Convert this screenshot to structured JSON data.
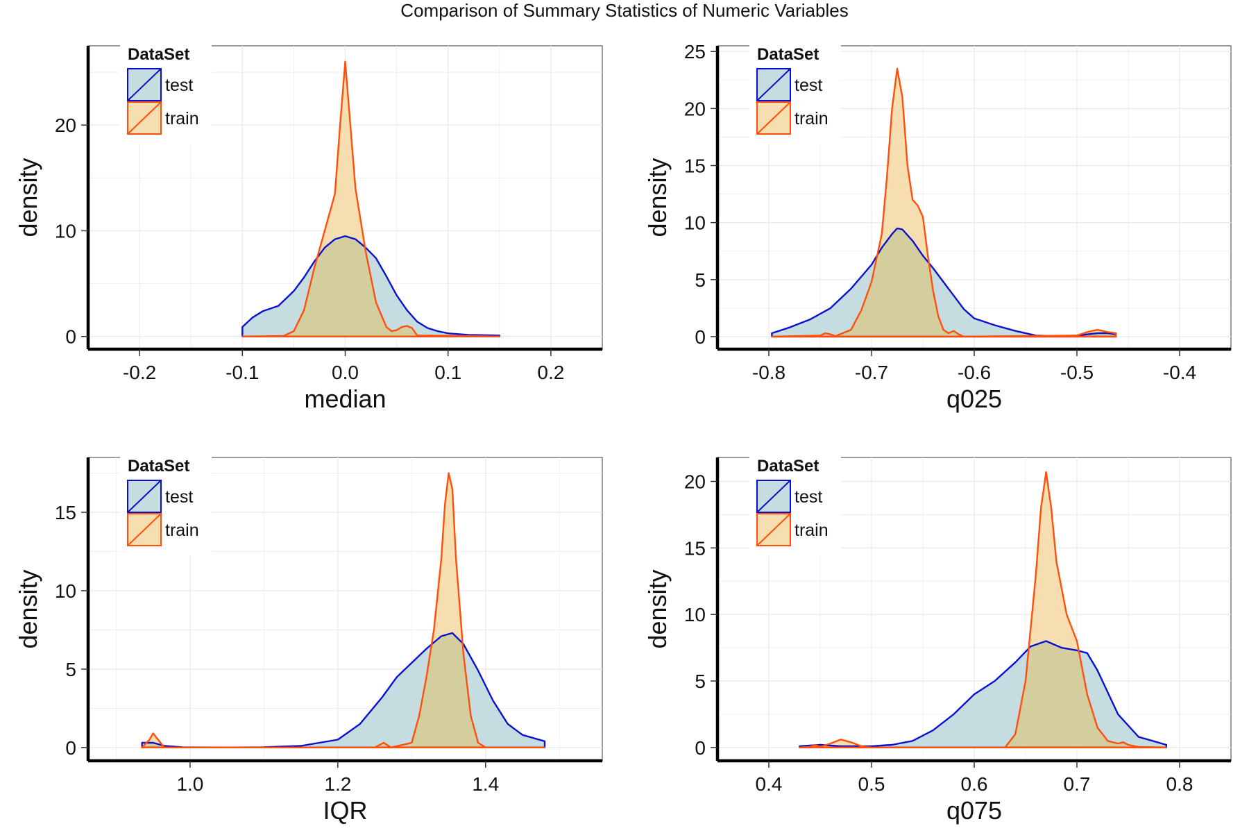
{
  "title": "Comparison of Summary Statistics of Numeric Variables",
  "legend": {
    "title": "DataSet",
    "items": [
      {
        "label": "test",
        "stroke": "#0a10d0",
        "fill": "#c5dde0"
      },
      {
        "label": "train",
        "stroke": "#ff4f0a",
        "fill": "#f6deb0"
      }
    ]
  },
  "colors": {
    "overlap_fill": "#d4cd9e",
    "grid": "#ebebeb",
    "axis": "#000000"
  },
  "chart_data": [
    {
      "type": "area",
      "xlabel": "median",
      "ylabel": "density",
      "xlim": [
        -0.25,
        0.25
      ],
      "ylim": [
        -1.2,
        27.5
      ],
      "xticks": [
        -0.2,
        -0.1,
        0.0,
        0.1,
        0.2
      ],
      "xtick_labels": [
        "-0.2",
        "-0.1",
        "0.0",
        "0.1",
        "0.2"
      ],
      "yticks": [
        0,
        10,
        20
      ],
      "ytick_labels": [
        "0",
        "10",
        "20"
      ],
      "legend_position": "top-left",
      "grid": true,
      "series": [
        {
          "name": "test",
          "x": [
            -0.1,
            -0.1,
            -0.09,
            -0.08,
            -0.065,
            -0.05,
            -0.04,
            -0.03,
            -0.02,
            -0.01,
            0.0,
            0.01,
            0.02,
            0.03,
            0.04,
            0.05,
            0.06,
            0.07,
            0.08,
            0.09,
            0.1,
            0.12,
            0.15,
            0.15
          ],
          "y": [
            0,
            0.9,
            1.8,
            2.4,
            2.9,
            4.3,
            5.6,
            7.1,
            8.4,
            9.2,
            9.5,
            9.2,
            8.4,
            7.4,
            5.7,
            3.9,
            2.5,
            1.4,
            0.8,
            0.5,
            0.3,
            0.15,
            0.1,
            0
          ]
        },
        {
          "name": "train",
          "x": [
            -0.1,
            -0.06,
            -0.05,
            -0.04,
            -0.03,
            -0.02,
            -0.01,
            -0.005,
            0.0,
            0.005,
            0.01,
            0.02,
            0.03,
            0.04,
            0.045,
            0.05,
            0.055,
            0.06,
            0.065,
            0.07,
            0.15
          ],
          "y": [
            0,
            0.05,
            0.5,
            2.5,
            6.5,
            10,
            13.5,
            20,
            26,
            20,
            14,
            8,
            3.2,
            0.9,
            0.5,
            0.6,
            0.9,
            1.0,
            0.8,
            0.1,
            0
          ]
        }
      ]
    },
    {
      "type": "area",
      "xlabel": "q025",
      "ylabel": "density",
      "xlim": [
        -0.85,
        -0.35
      ],
      "ylim": [
        -1.1,
        25.5
      ],
      "xticks": [
        -0.8,
        -0.7,
        -0.6,
        -0.5,
        -0.4
      ],
      "xtick_labels": [
        "-0.8",
        "-0.7",
        "-0.6",
        "-0.5",
        "-0.4"
      ],
      "yticks": [
        0,
        5,
        10,
        15,
        20,
        25
      ],
      "ytick_labels": [
        "0",
        "5",
        "10",
        "15",
        "20",
        "25"
      ],
      "legend_position": "top-left",
      "grid": true,
      "series": [
        {
          "name": "test",
          "x": [
            -0.797,
            -0.797,
            -0.78,
            -0.76,
            -0.74,
            -0.72,
            -0.7,
            -0.69,
            -0.68,
            -0.675,
            -0.67,
            -0.66,
            -0.65,
            -0.64,
            -0.63,
            -0.62,
            -0.61,
            -0.6,
            -0.58,
            -0.56,
            -0.54,
            -0.52,
            -0.5,
            -0.48,
            -0.47,
            -0.462,
            -0.462
          ],
          "y": [
            0,
            0.3,
            0.8,
            1.5,
            2.5,
            4.2,
            6.3,
            7.8,
            9.0,
            9.5,
            9.4,
            8.4,
            7.1,
            6.0,
            4.8,
            3.6,
            2.4,
            1.6,
            1.0,
            0.5,
            0.1,
            0.05,
            0.1,
            0.3,
            0.3,
            0.2,
            0
          ]
        },
        {
          "name": "train",
          "x": [
            -0.797,
            -0.75,
            -0.745,
            -0.74,
            -0.735,
            -0.72,
            -0.71,
            -0.7,
            -0.69,
            -0.685,
            -0.68,
            -0.675,
            -0.67,
            -0.665,
            -0.66,
            -0.655,
            -0.65,
            -0.645,
            -0.64,
            -0.635,
            -0.63,
            -0.625,
            -0.62,
            -0.615,
            -0.61,
            -0.5,
            -0.49,
            -0.48,
            -0.47,
            -0.462,
            -0.462
          ],
          "y": [
            0,
            0.1,
            0.3,
            0.2,
            0.05,
            0.6,
            2.3,
            4.8,
            9.0,
            14.0,
            20.0,
            23.5,
            21.0,
            15.0,
            12.0,
            11.5,
            10.5,
            7.0,
            4.0,
            1.8,
            0.6,
            0.3,
            0.5,
            0.2,
            0.0,
            0.1,
            0.4,
            0.6,
            0.4,
            0.3,
            0
          ]
        }
      ]
    },
    {
      "type": "area",
      "xlabel": "IQR",
      "ylabel": "density",
      "xlim": [
        0.862,
        1.558
      ],
      "ylim": [
        -0.85,
        18.5
      ],
      "xticks": [
        1.0,
        1.2,
        1.4
      ],
      "xtick_labels": [
        "1.0",
        "1.2",
        "1.4"
      ],
      "yticks": [
        0,
        5,
        10,
        15
      ],
      "ytick_labels": [
        "0",
        "5",
        "10",
        "15"
      ],
      "legend_position": "top-left",
      "grid": true,
      "series": [
        {
          "name": "test",
          "x": [
            0.935,
            0.935,
            0.95,
            0.965,
            0.99,
            1.05,
            1.1,
            1.15,
            1.2,
            1.23,
            1.26,
            1.28,
            1.3,
            1.32,
            1.34,
            1.355,
            1.37,
            1.39,
            1.41,
            1.43,
            1.45,
            1.465,
            1.48,
            1.48
          ],
          "y": [
            0,
            0.3,
            0.3,
            0.1,
            0.02,
            0.0,
            0.02,
            0.1,
            0.5,
            1.5,
            3.2,
            4.5,
            5.4,
            6.3,
            7.1,
            7.3,
            6.6,
            4.9,
            3.0,
            1.5,
            0.8,
            0.6,
            0.4,
            0
          ]
        },
        {
          "name": "train",
          "x": [
            0.935,
            0.945,
            0.95,
            0.955,
            0.965,
            1.0,
            1.25,
            1.262,
            1.272,
            1.3,
            1.31,
            1.32,
            1.33,
            1.34,
            1.345,
            1.35,
            1.355,
            1.36,
            1.37,
            1.38,
            1.39,
            1.4,
            1.48
          ],
          "y": [
            0,
            0.5,
            0.9,
            0.6,
            0.0,
            0.0,
            0.0,
            0.3,
            0.0,
            0.3,
            2.0,
            4.5,
            7.5,
            12.0,
            15.5,
            17.5,
            16.5,
            12.0,
            6.0,
            2.0,
            0.3,
            0.0,
            0
          ]
        }
      ]
    },
    {
      "type": "area",
      "xlabel": "q075",
      "ylabel": "density",
      "xlim": [
        0.35,
        0.85
      ],
      "ylim": [
        -1.0,
        21.8
      ],
      "xticks": [
        0.4,
        0.5,
        0.6,
        0.7,
        0.8
      ],
      "xtick_labels": [
        "0.4",
        "0.5",
        "0.6",
        "0.7",
        "0.8"
      ],
      "yticks": [
        0,
        5,
        10,
        15,
        20
      ],
      "ytick_labels": [
        "0",
        "5",
        "10",
        "15",
        "20"
      ],
      "legend_position": "top-left",
      "grid": true,
      "series": [
        {
          "name": "test",
          "x": [
            0.43,
            0.43,
            0.45,
            0.47,
            0.5,
            0.52,
            0.54,
            0.56,
            0.58,
            0.6,
            0.62,
            0.64,
            0.655,
            0.67,
            0.685,
            0.7,
            0.71,
            0.72,
            0.74,
            0.76,
            0.787,
            0.787
          ],
          "y": [
            0,
            0.1,
            0.2,
            0.1,
            0.1,
            0.2,
            0.5,
            1.3,
            2.5,
            4.0,
            5.0,
            6.4,
            7.6,
            8.0,
            7.5,
            7.3,
            7.1,
            5.8,
            2.5,
            0.8,
            0.2,
            0
          ]
        },
        {
          "name": "train",
          "x": [
            0.43,
            0.44,
            0.445,
            0.45,
            0.46,
            0.47,
            0.475,
            0.48,
            0.49,
            0.5,
            0.63,
            0.64,
            0.65,
            0.66,
            0.665,
            0.67,
            0.675,
            0.68,
            0.69,
            0.7,
            0.71,
            0.72,
            0.73,
            0.74,
            0.745,
            0.75,
            0.76,
            0.787
          ],
          "y": [
            0,
            0.05,
            0.2,
            0.05,
            0.3,
            0.6,
            0.5,
            0.4,
            0.1,
            0.0,
            0.0,
            1.0,
            5.0,
            13.0,
            18.0,
            20.7,
            18.0,
            14.0,
            10.0,
            8.0,
            4.0,
            1.5,
            0.5,
            0.3,
            0.4,
            0.2,
            0.05,
            0
          ]
        }
      ]
    }
  ]
}
